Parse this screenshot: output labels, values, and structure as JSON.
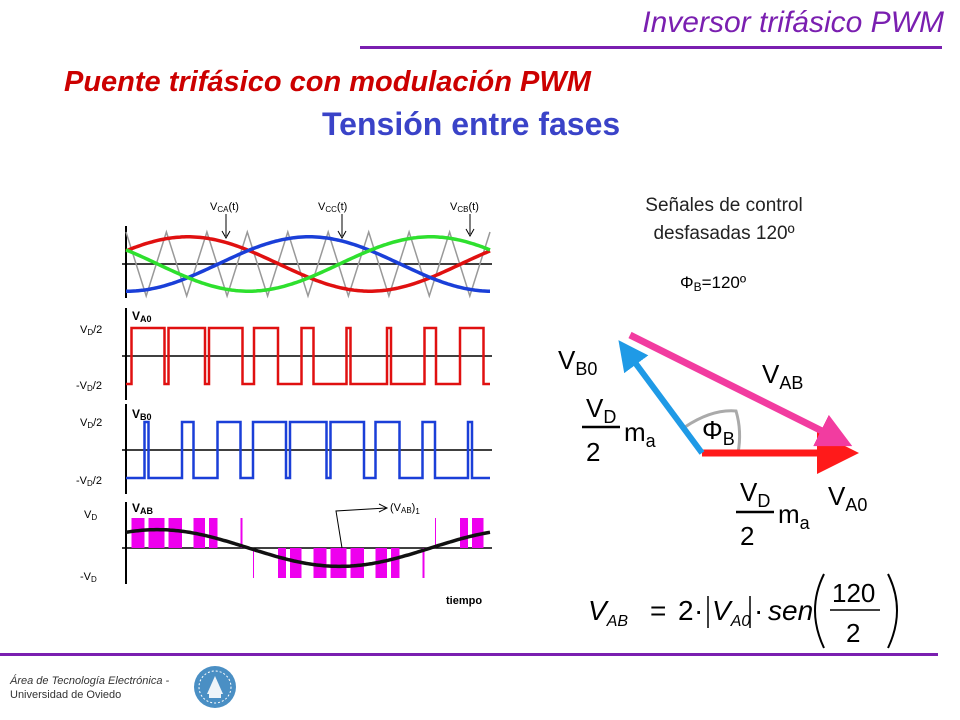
{
  "header": {
    "title": "Inversor trifásico PWM"
  },
  "slide": {
    "title": "Puente trifásico con modulación PWM",
    "subtitle": "Tensión entre fases"
  },
  "waveforms": {
    "control_labels": [
      "V",
      "V",
      "V"
    ],
    "control_label_subs": [
      "CA",
      "CC",
      "CB"
    ],
    "control_label_suffix": "(t)",
    "trace_labels": [
      "V",
      "V",
      "V"
    ],
    "trace_label_subs": [
      "A0",
      "B0",
      "AB"
    ],
    "level_pos": "V",
    "level_pos_sub": "D",
    "level_half_suffix": "/2",
    "level_neg_prefix": "-V",
    "fundamental_label": "(V",
    "fundamental_sub": "AB",
    "fundamental_suffix": ")",
    "fundamental_index": "1",
    "time_label": "tiempo",
    "colors": {
      "phase_a": "#e01010",
      "phase_b": "#1a3fd8",
      "phase_c": "#2ee02e",
      "carrier": "#999999",
      "vab": "#ee00ee",
      "fundamental": "#111111"
    }
  },
  "phasor": {
    "control_text_line1": "Señales de control",
    "control_text_line2": "desfasadas 120º",
    "phi": "Φ",
    "phi_sub": "B",
    "phi_value": "=120º",
    "v": "V",
    "vb0_sub": "B0",
    "vab_sub": "AB",
    "va0_sub": "A0",
    "vd_sub": "D",
    "two": "2",
    "m": "m",
    "m_sub": "a",
    "colors": {
      "va0": "#ff1a1a",
      "vb0": "#1f9ae6",
      "vab": "#f23ca0",
      "arc": "#aaaaaa"
    }
  },
  "formula": {
    "lhs": "V",
    "lhs_sub": "AB",
    "equals": "=",
    "factor": "2",
    "dot": "·",
    "bar_v": "V",
    "bar_v_sub": "A0",
    "func": "sen",
    "numerator": "120",
    "denominator": "2"
  },
  "footer": {
    "line1": "Área de Tecnología Electrónica -",
    "line2": "Universidad de Oviedo"
  }
}
